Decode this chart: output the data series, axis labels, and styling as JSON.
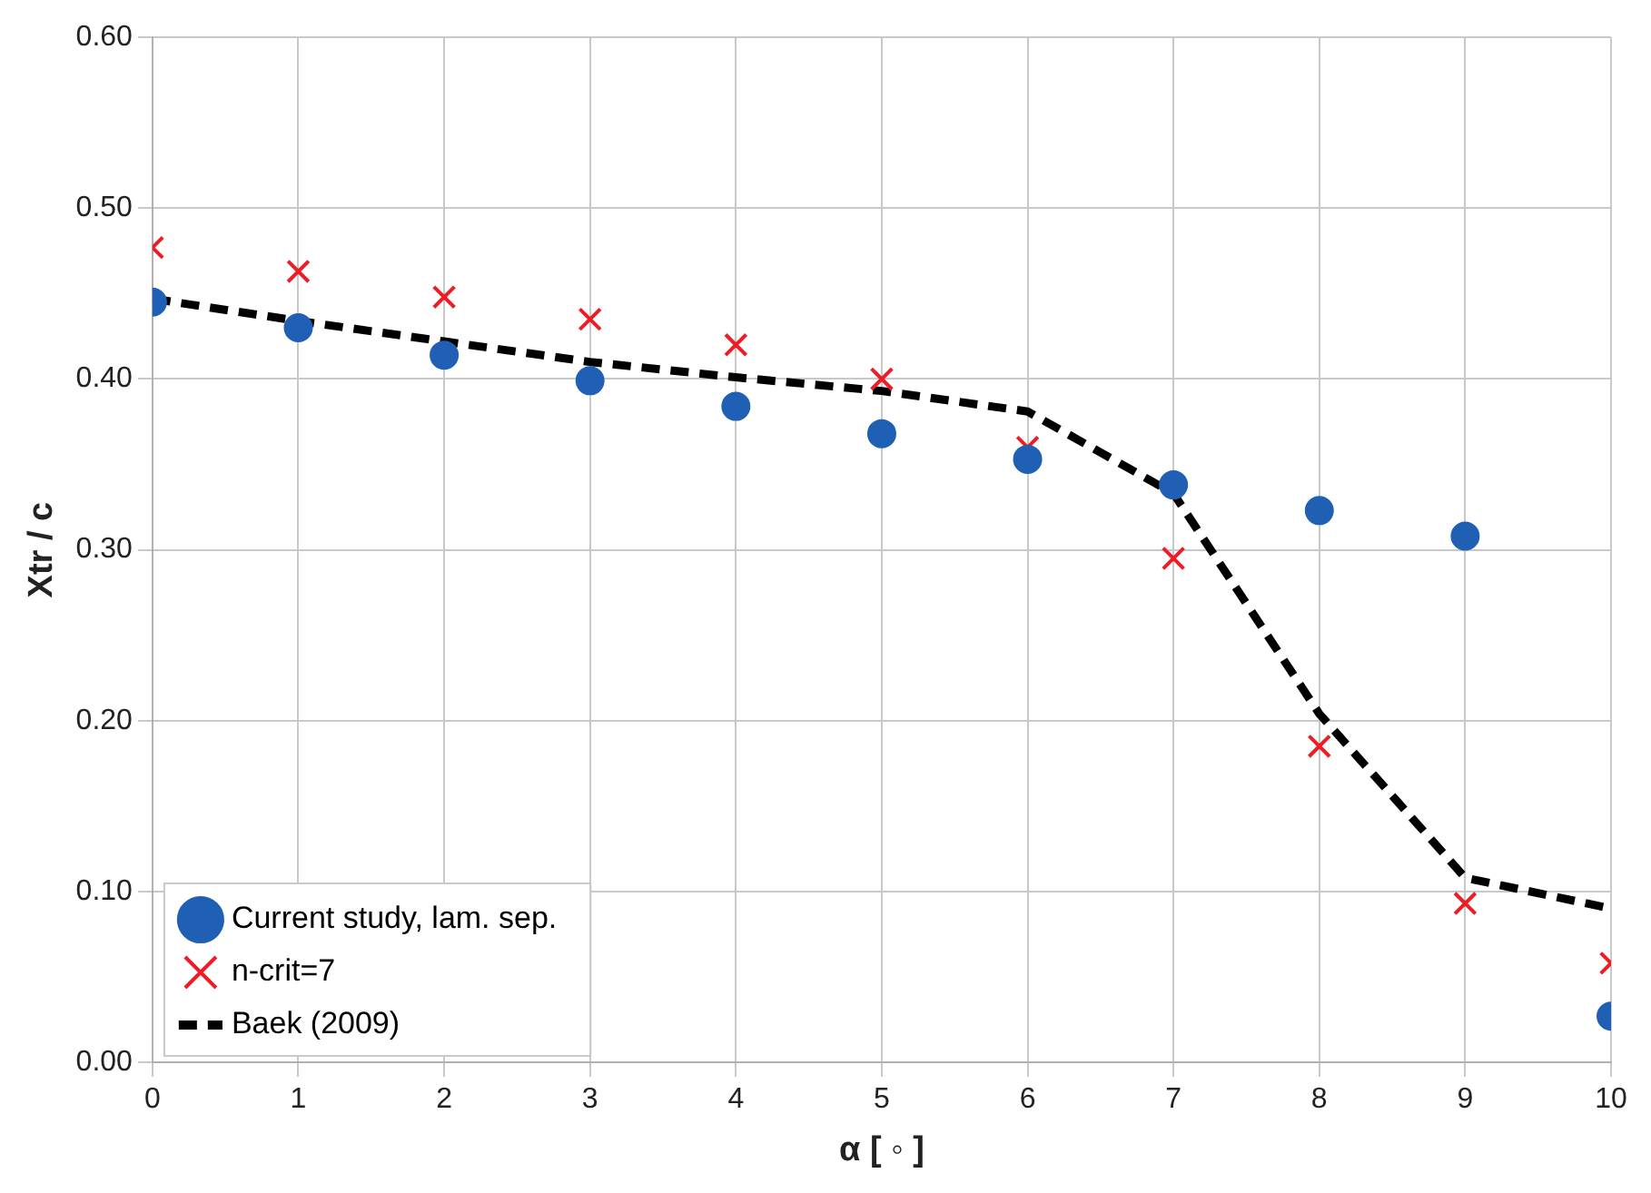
{
  "chart_data": {
    "type": "scatter",
    "xlabel": "α [ ◦ ]",
    "ylabel": "Xtr / c",
    "x": [
      0,
      1,
      2,
      3,
      4,
      5,
      6,
      7,
      8,
      9,
      10
    ],
    "series": [
      {
        "name": "Current study, lam. sep.",
        "marker": "circle",
        "color": "#1f5fb4",
        "values": [
          0.445,
          0.43,
          0.414,
          0.399,
          0.384,
          0.368,
          0.353,
          0.338,
          0.323,
          0.308,
          0.027
        ]
      },
      {
        "name": "n-crit=7",
        "marker": "cross",
        "color": "#ee1c25",
        "values": [
          0.477,
          0.463,
          0.448,
          0.435,
          0.42,
          0.4,
          0.36,
          0.295,
          0.185,
          0.093,
          0.058
        ]
      },
      {
        "name": "Baek (2009)",
        "type": "line",
        "marker": "none",
        "line_style": "dashed",
        "color": "#000000",
        "values": [
          0.447,
          0.434,
          0.422,
          0.41,
          0.401,
          0.393,
          0.381,
          0.333,
          0.204,
          0.108,
          0.09
        ]
      }
    ],
    "xlim": [
      0,
      10
    ],
    "xticks": [
      0,
      1,
      2,
      3,
      4,
      5,
      6,
      7,
      8,
      9,
      10
    ],
    "ylim": [
      0,
      0.6
    ],
    "yticks": [
      {
        "value": 0,
        "label": "0.00"
      },
      {
        "value": 0.1,
        "label": "0.10"
      },
      {
        "value": 0.2,
        "label": "0.20"
      },
      {
        "value": 0.3,
        "label": "0.30"
      },
      {
        "value": 0.4,
        "label": "0.40"
      },
      {
        "value": 0.5,
        "label": "0.50"
      },
      {
        "value": 0.6,
        "label": "0.60"
      }
    ],
    "grid": true,
    "legend": "bottom left"
  }
}
